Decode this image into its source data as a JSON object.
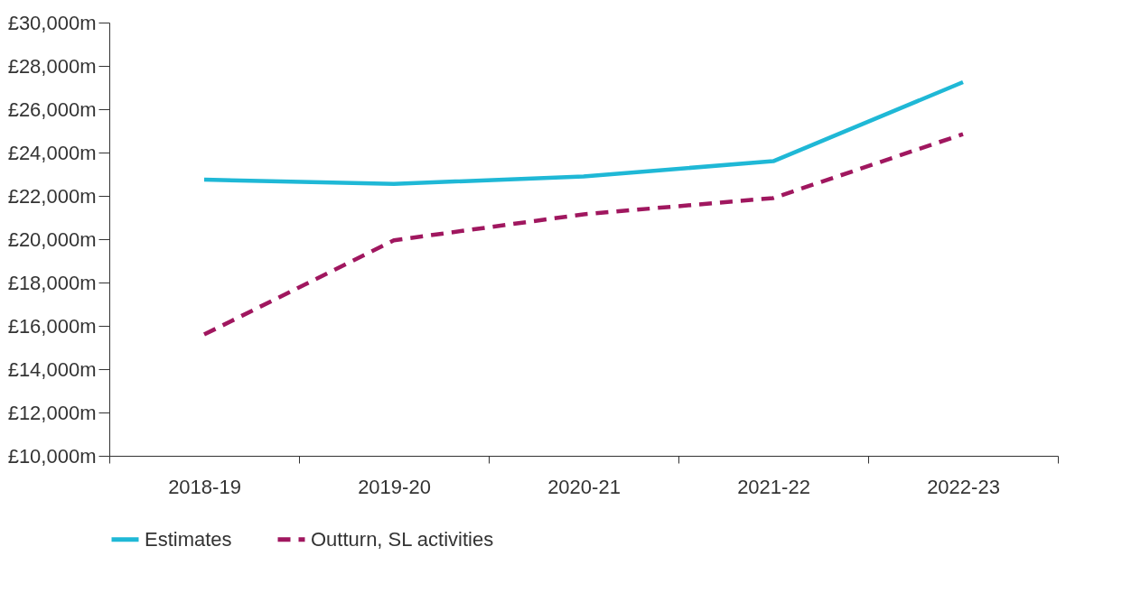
{
  "chart_data": {
    "type": "line",
    "categories": [
      "2018-19",
      "2019-20",
      "2020-21",
      "2021-22",
      "2022-23"
    ],
    "series": [
      {
        "name": "Estimates",
        "color": "#1fb8d6",
        "line_style": "solid",
        "values": [
          22750,
          22550,
          22900,
          23600,
          27250
        ]
      },
      {
        "name": "Outturn, SL activities",
        "color": "#a0175f",
        "line_style": "dashed",
        "values": [
          15600,
          19950,
          21150,
          21900,
          24850
        ]
      }
    ],
    "ylim": [
      10000,
      30000
    ],
    "yticks": [
      {
        "value": 10000,
        "label": "£10,000m"
      },
      {
        "value": 12000,
        "label": "£12,000m"
      },
      {
        "value": 14000,
        "label": "£14,000m"
      },
      {
        "value": 16000,
        "label": "£16,000m"
      },
      {
        "value": 18000,
        "label": "£18,000m"
      },
      {
        "value": 20000,
        "label": "£20,000m"
      },
      {
        "value": 22000,
        "label": "£22,000m"
      },
      {
        "value": 24000,
        "label": "£24,000m"
      },
      {
        "value": 26000,
        "label": "£26,000m"
      },
      {
        "value": 28000,
        "label": "£28,000m"
      },
      {
        "value": 30000,
        "label": "£30,000m"
      }
    ],
    "grid": false,
    "legend": "bottom",
    "marker": "none"
  }
}
